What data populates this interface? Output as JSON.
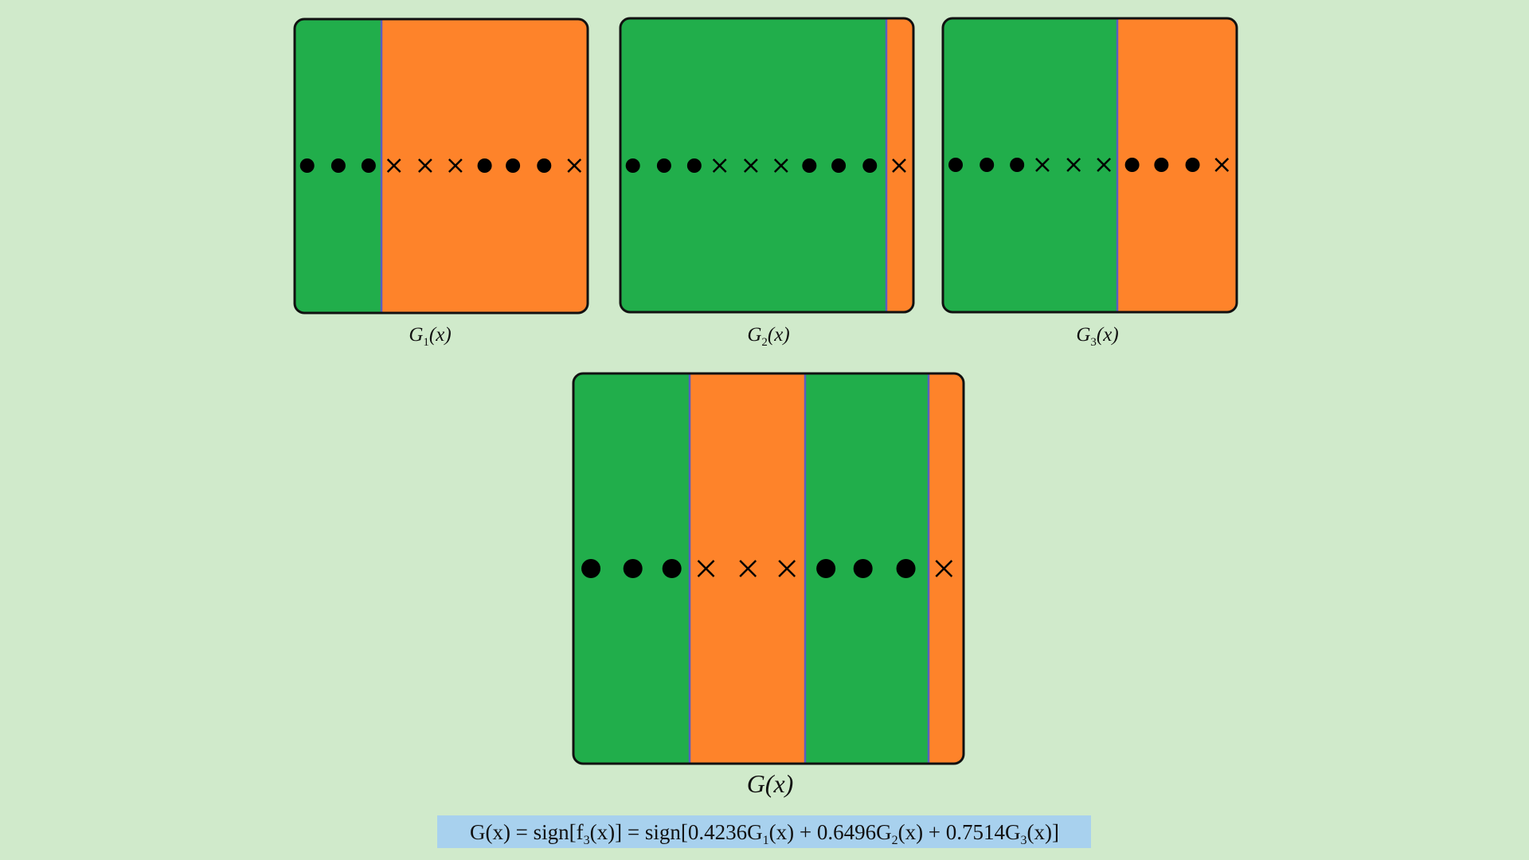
{
  "panels": [
    {
      "label": [
        "G",
        "1",
        "(x)"
      ]
    },
    {
      "label": [
        "G",
        "2",
        "(x)"
      ]
    },
    {
      "label": [
        "G",
        "3",
        "(x)"
      ]
    }
  ],
  "combined": {
    "label": "G(x)"
  },
  "formula": [
    "G(x) = sign[f",
    "3",
    "(x)] = sign[0.4236G",
    "1",
    "(x) + 0.6496G",
    "2",
    "(x) + 0.7514G",
    "3",
    "(x)]"
  ]
}
